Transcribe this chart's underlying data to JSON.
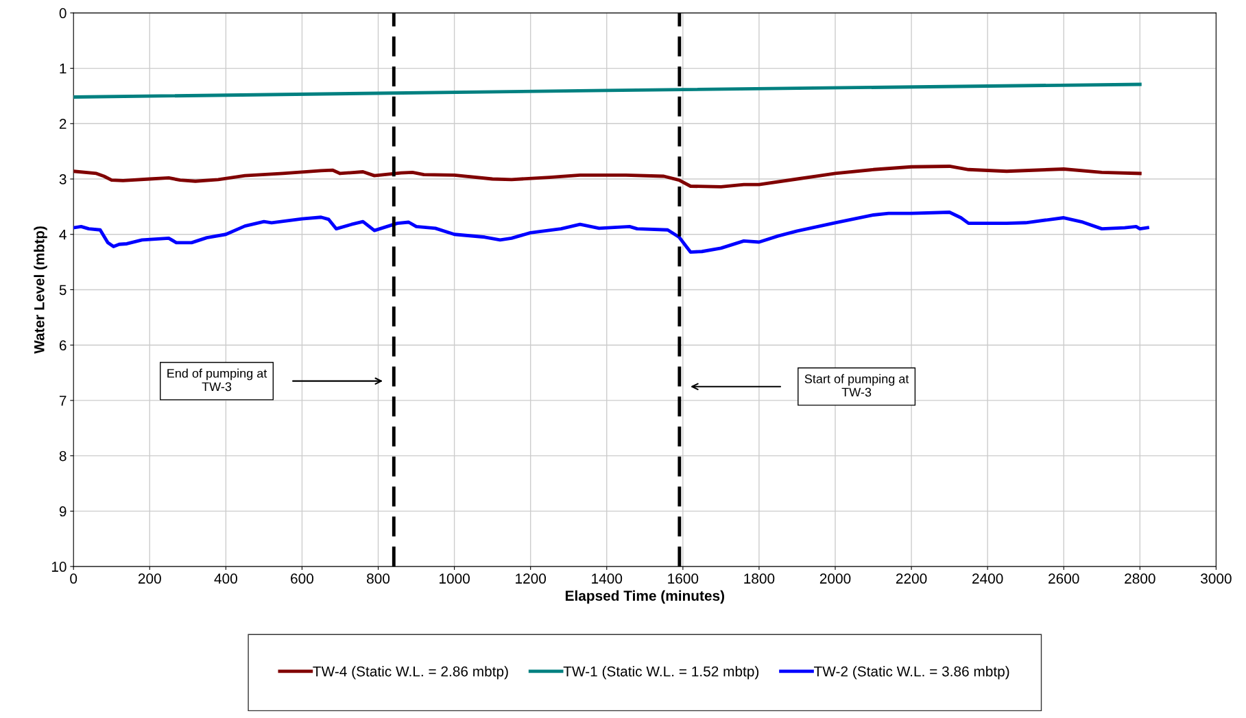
{
  "chart_data": {
    "type": "line",
    "xlabel": "Elapsed Time (minutes)",
    "ylabel": "Water Level (mbtp)",
    "xlim": [
      0,
      3000
    ],
    "xticks": [
      0,
      200,
      400,
      600,
      800,
      1000,
      1200,
      1400,
      1600,
      1800,
      2000,
      2200,
      2400,
      2600,
      2800,
      3000
    ],
    "ylim": [
      10,
      0
    ],
    "yticks": [
      0,
      1,
      2,
      3,
      4,
      5,
      6,
      7,
      8,
      9,
      10
    ],
    "grid": true,
    "legend": "bottom",
    "marker": "none",
    "line_style": "solid",
    "series": [
      {
        "name": "TW-4 (Static W.L. = 2.86 mbtp)",
        "color": "#800000",
        "x": [
          0,
          60,
          80,
          100,
          130,
          200,
          250,
          280,
          320,
          380,
          450,
          550,
          650,
          680,
          700,
          760,
          790,
          860,
          890,
          920,
          1000,
          1100,
          1150,
          1250,
          1330,
          1450,
          1550,
          1590,
          1620,
          1700,
          1760,
          1800,
          1900,
          2000,
          2100,
          2200,
          2300,
          2350,
          2450,
          2600,
          2700,
          2800
        ],
        "values": [
          2.86,
          2.9,
          2.95,
          3.02,
          3.03,
          3.0,
          2.98,
          3.02,
          3.04,
          3.01,
          2.94,
          2.9,
          2.85,
          2.84,
          2.9,
          2.87,
          2.94,
          2.89,
          2.88,
          2.92,
          2.93,
          3.0,
          3.01,
          2.97,
          2.93,
          2.93,
          2.95,
          3.02,
          3.13,
          3.14,
          3.1,
          3.1,
          3.0,
          2.9,
          2.83,
          2.78,
          2.77,
          2.83,
          2.86,
          2.82,
          2.88,
          2.9
        ]
      },
      {
        "name": "TW-1 (Static W.L. = 1.52 mbtp)",
        "color": "#008080",
        "x": [
          0,
          1400,
          2800
        ],
        "values": [
          1.52,
          1.4,
          1.29
        ]
      },
      {
        "name": "TW-2 (Static W.L. = 3.86 mbtp)",
        "color": "#0000ff",
        "x": [
          0,
          20,
          40,
          70,
          90,
          105,
          120,
          140,
          180,
          250,
          270,
          310,
          350,
          400,
          450,
          500,
          520,
          600,
          650,
          670,
          690,
          730,
          760,
          790,
          850,
          880,
          900,
          950,
          1000,
          1080,
          1120,
          1150,
          1200,
          1280,
          1330,
          1380,
          1460,
          1480,
          1560,
          1590,
          1620,
          1650,
          1700,
          1760,
          1800,
          1850,
          1900,
          2000,
          2100,
          2140,
          2200,
          2300,
          2330,
          2350,
          2450,
          2500,
          2600,
          2650,
          2700,
          2760,
          2790,
          2800,
          2820
        ],
        "values": [
          3.88,
          3.86,
          3.9,
          3.92,
          4.15,
          4.22,
          4.18,
          4.17,
          4.1,
          4.07,
          4.15,
          4.15,
          4.06,
          4.0,
          3.85,
          3.77,
          3.79,
          3.72,
          3.69,
          3.73,
          3.9,
          3.82,
          3.77,
          3.93,
          3.8,
          3.78,
          3.86,
          3.89,
          4.0,
          4.05,
          4.1,
          4.07,
          3.97,
          3.9,
          3.82,
          3.89,
          3.86,
          3.9,
          3.92,
          4.05,
          4.32,
          4.31,
          4.25,
          4.12,
          4.14,
          4.03,
          3.94,
          3.79,
          3.65,
          3.62,
          3.62,
          3.6,
          3.7,
          3.8,
          3.8,
          3.79,
          3.7,
          3.78,
          3.9,
          3.88,
          3.86,
          3.9,
          3.88
        ]
      }
    ],
    "ref_lines": [
      {
        "axis": "x",
        "value": 841,
        "color": "#000000",
        "line_style": "dashed"
      },
      {
        "axis": "x",
        "value": 1591,
        "color": "#000000",
        "line_style": "dashed"
      }
    ],
    "annotations": [
      "End of pumping at\nTW-3",
      "Start of pumping at\nTW-3"
    ]
  }
}
